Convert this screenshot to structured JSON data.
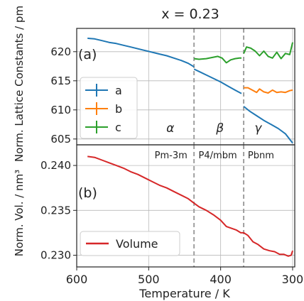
{
  "chart_data": [
    {
      "type": "line",
      "title": "x = 0.23",
      "panel_label": "(a)",
      "xlabel": "Temperature / K",
      "ylabel": "Norm. Lattice Constants / pm",
      "xlim": [
        600,
        297
      ],
      "ylim": [
        604,
        624
      ],
      "xticks": [
        600,
        500,
        400,
        300
      ],
      "yticks": [
        605,
        610,
        615,
        620
      ],
      "grid": true,
      "legend_position": "middle-left",
      "phase_boundaries": [
        437,
        368
      ],
      "phase_labels": [
        {
          "x": 470,
          "y": 606.8,
          "text": "α"
        },
        {
          "x": 401,
          "y": 606.8,
          "text": "β"
        },
        {
          "x": 348,
          "y": 606.8,
          "text": "γ"
        }
      ],
      "series": [
        {
          "name": "a",
          "color": "#1f77b4",
          "segments": [
            [
              [
                585,
                622.3
              ],
              [
                575,
                622.2
              ],
              [
                565,
                621.9
              ],
              [
                555,
                621.6
              ],
              [
                545,
                621.4
              ],
              [
                535,
                621.1
              ],
              [
                525,
                620.8
              ],
              [
                515,
                620.5
              ],
              [
                505,
                620.2
              ],
              [
                495,
                619.9
              ],
              [
                485,
                619.6
              ],
              [
                475,
                619.3
              ],
              [
                465,
                618.9
              ],
              [
                455,
                618.5
              ],
              [
                445,
                618.0
              ],
              [
                437,
                617.4
              ]
            ],
            [
              [
                437,
                617.0
              ],
              [
                430,
                616.6
              ],
              [
                420,
                616.0
              ],
              [
                410,
                615.4
              ],
              [
                400,
                614.8
              ],
              [
                390,
                614.1
              ],
              [
                380,
                613.4
              ],
              [
                371,
                612.8
              ]
            ],
            [
              [
                368,
                610.6
              ],
              [
                360,
                609.8
              ],
              [
                350,
                609.0
              ],
              [
                340,
                608.2
              ],
              [
                330,
                607.5
              ],
              [
                320,
                606.8
              ],
              [
                310,
                605.9
              ],
              [
                300,
                604.3
              ]
            ]
          ]
        },
        {
          "name": "b",
          "color": "#ff7f0e",
          "segments": [
            [],
            [],
            [
              [
                368,
                613.8
              ],
              [
                362,
                613.8
              ],
              [
                356,
                613.4
              ],
              [
                350,
                613.0
              ],
              [
                346,
                613.6
              ],
              [
                340,
                613.1
              ],
              [
                334,
                612.9
              ],
              [
                328,
                613.4
              ],
              [
                322,
                613.0
              ],
              [
                316,
                613.1
              ],
              [
                310,
                613.0
              ],
              [
                304,
                613.3
              ],
              [
                300,
                613.4
              ]
            ]
          ]
        },
        {
          "name": "c",
          "color": "#2ca02c",
          "segments": [
            [],
            [
              [
                437,
                618.8
              ],
              [
                430,
                618.7
              ],
              [
                420,
                618.8
              ],
              [
                412,
                619.0
              ],
              [
                404,
                619.2
              ],
              [
                398,
                618.9
              ],
              [
                392,
                618.1
              ],
              [
                386,
                618.6
              ],
              [
                380,
                618.8
              ],
              [
                374,
                618.9
              ],
              [
                371,
                618.9
              ]
            ],
            [
              [
                368,
                619.7
              ],
              [
                364,
                620.8
              ],
              [
                358,
                620.6
              ],
              [
                352,
                620.1
              ],
              [
                346,
                619.3
              ],
              [
                340,
                620.1
              ],
              [
                334,
                619.2
              ],
              [
                328,
                618.9
              ],
              [
                322,
                619.9
              ],
              [
                316,
                618.8
              ],
              [
                310,
                619.7
              ],
              [
                304,
                619.5
              ],
              [
                300,
                621.6
              ]
            ]
          ]
        }
      ]
    },
    {
      "type": "line",
      "panel_label": "(b)",
      "xlabel": "Temperature / K",
      "ylabel": "Norm. Vol. / nm³",
      "xlim": [
        600,
        297
      ],
      "ylim": [
        0.2287,
        0.2423
      ],
      "xticks": [
        600,
        500,
        400,
        300
      ],
      "yticks": [
        0.23,
        0.235,
        0.24
      ],
      "grid": true,
      "legend_position": "lower-left",
      "phase_boundaries": [
        437,
        368
      ],
      "phase_labels": [
        {
          "x": 469,
          "y": 0.2412,
          "text": "Pm-3m"
        },
        {
          "x": 404,
          "y": 0.2412,
          "text": "P4/mbm"
        },
        {
          "x": 344,
          "y": 0.2412,
          "text": "Pbnm"
        }
      ],
      "series": [
        {
          "name": "Volume",
          "color": "#d62728",
          "points": [
            [
              585,
              0.241
            ],
            [
              575,
              0.2409
            ],
            [
              565,
              0.2406
            ],
            [
              555,
              0.2403
            ],
            [
              545,
              0.24
            ],
            [
              535,
              0.2397
            ],
            [
              525,
              0.2393
            ],
            [
              515,
              0.239
            ],
            [
              505,
              0.2386
            ],
            [
              495,
              0.2382
            ],
            [
              485,
              0.2378
            ],
            [
              475,
              0.2375
            ],
            [
              465,
              0.2371
            ],
            [
              455,
              0.2367
            ],
            [
              445,
              0.2363
            ],
            [
              437,
              0.2358
            ],
            [
              430,
              0.2354
            ],
            [
              420,
              0.235
            ],
            [
              410,
              0.2345
            ],
            [
              400,
              0.2339
            ],
            [
              392,
              0.2332
            ],
            [
              385,
              0.233
            ],
            [
              378,
              0.2328
            ],
            [
              372,
              0.2325
            ],
            [
              368,
              0.2325
            ],
            [
              362,
              0.2322
            ],
            [
              355,
              0.2315
            ],
            [
              348,
              0.2312
            ],
            [
              340,
              0.2307
            ],
            [
              332,
              0.2305
            ],
            [
              325,
              0.2304
            ],
            [
              318,
              0.2301
            ],
            [
              312,
              0.2301
            ],
            [
              306,
              0.2299
            ],
            [
              302,
              0.23
            ],
            [
              300,
              0.2305
            ]
          ]
        }
      ]
    }
  ]
}
